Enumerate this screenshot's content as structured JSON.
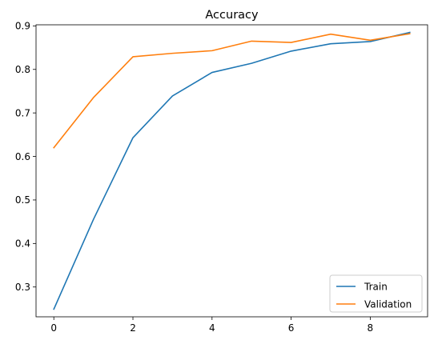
{
  "chart_data": {
    "type": "line",
    "title": "Accuracy",
    "xlabel": "",
    "ylabel": "",
    "x": [
      0,
      1,
      2,
      3,
      4,
      5,
      6,
      7,
      8,
      9
    ],
    "series": [
      {
        "name": "Train",
        "color": "#1f77b4",
        "values": [
          0.249,
          0.455,
          0.643,
          0.739,
          0.793,
          0.814,
          0.842,
          0.859,
          0.864,
          0.885
        ]
      },
      {
        "name": "Validation",
        "color": "#ff7f0e",
        "values": [
          0.62,
          0.735,
          0.829,
          0.837,
          0.843,
          0.865,
          0.862,
          0.881,
          0.867,
          0.882
        ]
      }
    ],
    "xlim": [
      -0.45,
      9.45
    ],
    "ylim": [
      0.2315,
      0.9025
    ],
    "xticks": [
      0,
      2,
      4,
      6,
      8
    ],
    "yticks": [
      0.3,
      0.4,
      0.5,
      0.6,
      0.7,
      0.8,
      0.9
    ],
    "xtick_labels": [
      "0",
      "2",
      "4",
      "6",
      "8"
    ],
    "ytick_labels": [
      "0.3",
      "0.4",
      "0.5",
      "0.6",
      "0.7",
      "0.8",
      "0.9"
    ],
    "grid": false,
    "legend_position": "lower-right"
  }
}
